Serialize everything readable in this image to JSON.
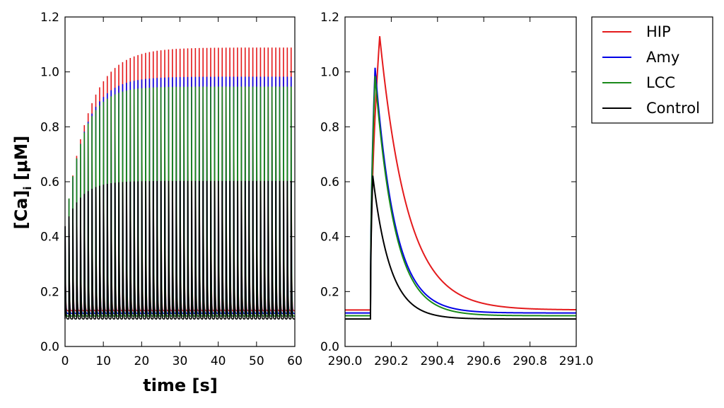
{
  "chart_data": [
    {
      "type": "line",
      "panel": "left",
      "xlabel": "time [s]",
      "ylabel": "[Ca]",
      "ylabel_subscript": "i",
      "ylabel_unit": "[μM]",
      "xlim": [
        0,
        60
      ],
      "ylim": [
        0.0,
        1.2
      ],
      "xticks": [
        0,
        10,
        20,
        30,
        40,
        50,
        60
      ],
      "xtick_labels": [
        "0",
        "10",
        "20",
        "30",
        "40",
        "50",
        "60"
      ],
      "yticks": [
        0.0,
        0.2,
        0.4,
        0.6,
        0.8,
        1.0,
        1.2
      ],
      "ytick_labels": [
        "0.0",
        "0.2",
        "0.4",
        "0.6",
        "0.8",
        "1.0",
        "1.2"
      ],
      "grid": false,
      "spike_period_s": 1,
      "series": [
        {
          "name": "HIP",
          "color": "#e41a1c",
          "baseline": 0.13,
          "peak_start": 0.45,
          "peak_steady": 1.125,
          "tau_s": 6
        },
        {
          "name": "Amy",
          "color": "#0000e6",
          "baseline": 0.12,
          "peak_start": 0.45,
          "peak_steady": 1.015,
          "tau_s": 5
        },
        {
          "name": "LCC",
          "color": "#1a8a1a",
          "baseline": 0.11,
          "peak_start": 0.45,
          "peak_steady": 0.978,
          "tau_s": 4.5
        },
        {
          "name": "Control",
          "color": "#000000",
          "baseline": 0.1,
          "peak_start": 0.45,
          "peak_steady": 0.622,
          "tau_s": 4
        }
      ]
    },
    {
      "type": "line",
      "panel": "right",
      "xlim": [
        290.0,
        291.0
      ],
      "ylim": [
        0.0,
        1.2
      ],
      "xticks": [
        290.0,
        290.2,
        290.4,
        290.6,
        290.8,
        291.0
      ],
      "xtick_labels": [
        "290.0",
        "290.2",
        "290.4",
        "290.6",
        "290.8",
        "291.0"
      ],
      "yticks": [
        0.0,
        0.2,
        0.4,
        0.6,
        0.8,
        1.0,
        1.2
      ],
      "ytick_labels": [
        "0.0",
        "0.2",
        "0.4",
        "0.6",
        "0.8",
        "1.0",
        "1.2"
      ],
      "grid": false,
      "stimulus_onset": 290.11,
      "series": [
        {
          "name": "HIP",
          "color": "#e41a1c",
          "baseline": 0.133,
          "peak": 1.13,
          "peak_time": 290.15,
          "decay_tau_s": 0.12
        },
        {
          "name": "Amy",
          "color": "#0000e6",
          "baseline": 0.122,
          "peak": 1.015,
          "peak_time": 290.13,
          "decay_tau_s": 0.085
        },
        {
          "name": "LCC",
          "color": "#1a8a1a",
          "baseline": 0.112,
          "peak": 0.985,
          "peak_time": 290.13,
          "decay_tau_s": 0.085
        },
        {
          "name": "Control",
          "color": "#000000",
          "baseline": 0.1,
          "peak": 0.622,
          "peak_time": 290.12,
          "decay_tau_s": 0.075
        }
      ]
    }
  ],
  "legend": {
    "placement": "outside-right",
    "entries": [
      {
        "label": "HIP",
        "color": "#e41a1c"
      },
      {
        "label": "Amy",
        "color": "#0000e6"
      },
      {
        "label": "LCC",
        "color": "#1a8a1a"
      },
      {
        "label": "Control",
        "color": "#000000"
      }
    ]
  }
}
